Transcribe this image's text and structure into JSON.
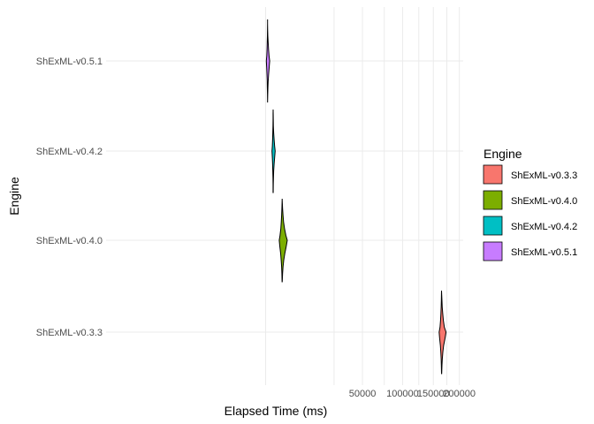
{
  "chart_data": {
    "type": "violin",
    "xlabel": "Elapsed Time (ms)",
    "ylabel": "Engine",
    "x_scale": "sqrt",
    "xlim": [
      0,
      200000
    ],
    "x_ticks": [
      50000,
      100000,
      150000,
      200000
    ],
    "x_tick_labels": [
      "50000",
      "100000",
      "150000",
      "200000"
    ],
    "minor_x_ticks": [
      25000,
      75000,
      125000,
      175000
    ],
    "grid": true,
    "categories": [
      "ShExML-v0.3.3",
      "ShExML-v0.4.0",
      "ShExML-v0.4.2",
      "ShExML-v0.5.1"
    ],
    "legend": {
      "title": "Engine",
      "position": "right",
      "entries": [
        "ShExML-v0.3.3",
        "ShExML-v0.4.0",
        "ShExML-v0.4.2",
        "ShExML-v0.5.1"
      ]
    },
    "series": [
      {
        "category": "ShExML-v0.3.3",
        "color": "#F8766D",
        "profile": [
          [
            0.0,
            165000
          ],
          [
            0.05,
            165300
          ],
          [
            0.12,
            165700
          ],
          [
            0.2,
            166300
          ],
          [
            0.28,
            167200
          ],
          [
            0.36,
            168500
          ],
          [
            0.44,
            170200
          ],
          [
            0.5,
            173500
          ],
          [
            0.58,
            171500
          ],
          [
            0.66,
            169000
          ],
          [
            0.74,
            167400
          ],
          [
            0.82,
            166400
          ],
          [
            0.9,
            165700
          ],
          [
            1.0,
            165200
          ]
        ]
      },
      {
        "category": "ShExML-v0.4.0",
        "color": "#7CAE00",
        "profile": [
          [
            0.0,
            1450
          ],
          [
            0.05,
            1480
          ],
          [
            0.12,
            1530
          ],
          [
            0.2,
            1610
          ],
          [
            0.28,
            1720
          ],
          [
            0.36,
            1900
          ],
          [
            0.44,
            2180
          ],
          [
            0.5,
            2500
          ],
          [
            0.58,
            2250
          ],
          [
            0.66,
            1960
          ],
          [
            0.74,
            1750
          ],
          [
            0.82,
            1620
          ],
          [
            0.9,
            1530
          ],
          [
            1.0,
            1470
          ]
        ]
      },
      {
        "category": "ShExML-v0.4.2",
        "color": "#00BFC4",
        "profile": [
          [
            0.0,
            300
          ],
          [
            0.05,
            305
          ],
          [
            0.12,
            312
          ],
          [
            0.2,
            325
          ],
          [
            0.28,
            345
          ],
          [
            0.36,
            380
          ],
          [
            0.44,
            430
          ],
          [
            0.5,
            490
          ],
          [
            0.58,
            430
          ],
          [
            0.66,
            380
          ],
          [
            0.74,
            348
          ],
          [
            0.82,
            328
          ],
          [
            0.9,
            315
          ],
          [
            1.0,
            305
          ]
        ]
      },
      {
        "category": "ShExML-v0.5.1",
        "color": "#C77CFF",
        "profile": [
          [
            0.0,
            20
          ],
          [
            0.05,
            21
          ],
          [
            0.12,
            23
          ],
          [
            0.2,
            27
          ],
          [
            0.28,
            34
          ],
          [
            0.36,
            45
          ],
          [
            0.44,
            62
          ],
          [
            0.5,
            90
          ],
          [
            0.58,
            66
          ],
          [
            0.66,
            48
          ],
          [
            0.74,
            36
          ],
          [
            0.82,
            29
          ],
          [
            0.9,
            24
          ],
          [
            1.0,
            21
          ]
        ]
      }
    ]
  }
}
